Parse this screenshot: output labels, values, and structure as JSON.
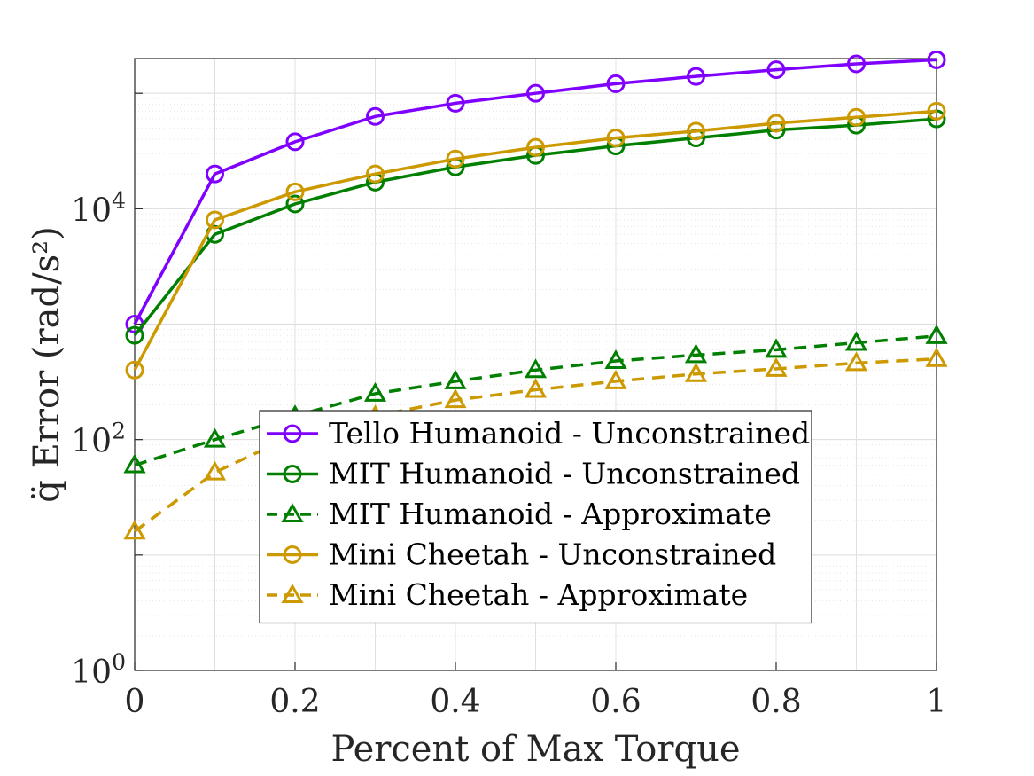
{
  "chart_data": {
    "type": "line",
    "xlabel": "Percent of Max Torque",
    "ylabel": "q̈ Error (rad/s²)",
    "xlim": [
      0,
      1
    ],
    "ylim": [
      1,
      200000
    ],
    "yscale": "log",
    "grid": true,
    "minor_grid": true,
    "legend_position": "center-bottom",
    "x_ticks": [
      "0",
      "0.2",
      "0.4",
      "0.6",
      "0.8",
      "1"
    ],
    "y_ticks": [
      {
        "base": "10",
        "exp": "0",
        "value": 1
      },
      {
        "base": "10",
        "exp": "2",
        "value": 100
      },
      {
        "base": "10",
        "exp": "4",
        "value": 10000
      }
    ],
    "x": [
      0,
      0.1,
      0.2,
      0.3,
      0.4,
      0.5,
      0.6,
      0.7,
      0.8,
      0.9,
      1.0
    ],
    "series": [
      {
        "name": "Tello Humanoid - Unconstrained",
        "color": "#8000ff",
        "style": "solid",
        "marker": "circle",
        "values": [
          1000,
          20000,
          38000,
          63000,
          82000,
          100000,
          121000,
          140000,
          160000,
          180000,
          195000
        ]
      },
      {
        "name": "MIT Humanoid - Unconstrained",
        "color": "#007f00",
        "style": "solid",
        "marker": "circle",
        "values": [
          800,
          6000,
          11000,
          17000,
          23000,
          29000,
          35000,
          41000,
          48000,
          53000,
          60000
        ]
      },
      {
        "name": "MIT Humanoid - Approximate",
        "color": "#007f00",
        "style": "dashed",
        "marker": "triangle",
        "values": [
          60,
          100,
          160,
          250,
          320,
          400,
          480,
          540,
          600,
          690,
          790
        ]
      },
      {
        "name": "Mini Cheetah - Unconstrained",
        "color": "#cc9900",
        "style": "solid",
        "marker": "circle",
        "values": [
          400,
          8000,
          14000,
          20000,
          27000,
          34000,
          41000,
          47000,
          55000,
          62000,
          70000
        ]
      },
      {
        "name": "Mini Cheetah - Approximate",
        "color": "#cc9900",
        "style": "dashed",
        "marker": "triangle",
        "values": [
          16,
          52,
          110,
          160,
          220,
          270,
          320,
          370,
          410,
          460,
          500
        ]
      }
    ]
  }
}
